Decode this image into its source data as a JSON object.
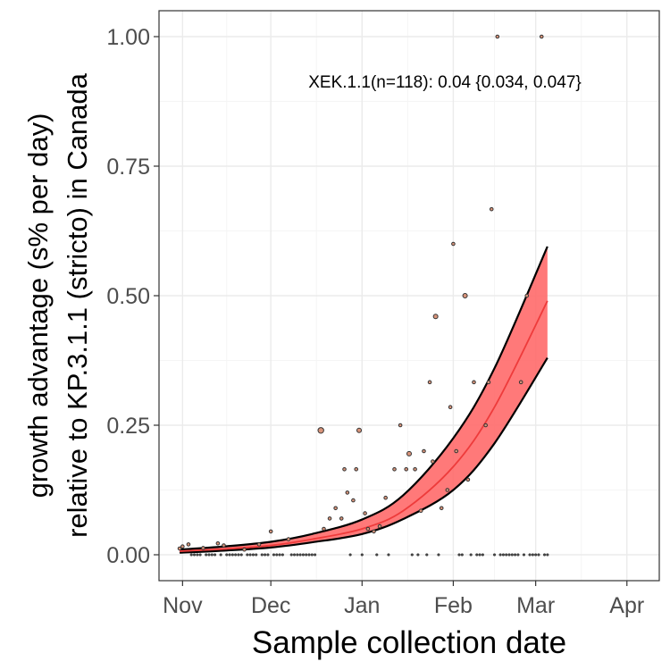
{
  "chart_data": {
    "type": "scatter",
    "title": "",
    "xlabel": "Sample collection date",
    "ylabel_line1": "growth advantage (s% per day)",
    "ylabel_line2": "relative to KP.3.1.1 (stricto) in Canada",
    "annotation": "XEK.1.1(n=118): 0.04 {0.034, 0.047}",
    "x_unit": "date",
    "xlim": [
      "2024-10-24",
      "2025-04-12"
    ],
    "ylim": [
      -0.05,
      1.05
    ],
    "x_ticks": [
      {
        "date": "2024-11-01",
        "label": "Nov"
      },
      {
        "date": "2024-12-01",
        "label": "Dec"
      },
      {
        "date": "2025-01-01",
        "label": "Jan"
      },
      {
        "date": "2025-02-01",
        "label": "Feb"
      },
      {
        "date": "2025-03-01",
        "label": "Mar"
      },
      {
        "date": "2025-04-01",
        "label": "Apr"
      }
    ],
    "y_ticks": [
      {
        "value": 0.0,
        "label": "0.00"
      },
      {
        "value": 0.25,
        "label": "0.25"
      },
      {
        "value": 0.5,
        "label": "0.50"
      },
      {
        "value": 0.75,
        "label": "0.75"
      },
      {
        "value": 1.0,
        "label": "1.00"
      }
    ],
    "grid": true,
    "colors": {
      "band_fill": "#ff6a6a",
      "fit_line": "#ee3b3b",
      "band_edge": "#000000",
      "point_fill": "#d9947a",
      "point_edge": "#333333",
      "panel_border": "#333333",
      "grid_major": "#ebebeb",
      "grid_minor": "#f5f5f5"
    },
    "fit": {
      "series_name": "XEK.1.1",
      "x": [
        "2024-10-31",
        "2024-11-15",
        "2024-12-01",
        "2024-12-15",
        "2025-01-01",
        "2025-01-15",
        "2025-02-01",
        "2025-02-15",
        "2025-03-05"
      ],
      "y": [
        0.007,
        0.011,
        0.018,
        0.03,
        0.05,
        0.085,
        0.17,
        0.285,
        0.49
      ],
      "lower": [
        0.004,
        0.008,
        0.014,
        0.024,
        0.04,
        0.069,
        0.125,
        0.215,
        0.38
      ],
      "upper": [
        0.01,
        0.016,
        0.025,
        0.04,
        0.068,
        0.115,
        0.225,
        0.36,
        0.595
      ]
    },
    "points": [
      {
        "x": "2024-10-31",
        "y": 0.012,
        "n": 1
      },
      {
        "x": "2024-11-01",
        "y": 0.016,
        "n": 1
      },
      {
        "x": "2024-11-03",
        "y": 0.02,
        "n": 1
      },
      {
        "x": "2024-11-08",
        "y": 0.013,
        "n": 1
      },
      {
        "x": "2024-11-13",
        "y": 0.022,
        "n": 1
      },
      {
        "x": "2024-11-15",
        "y": 0.018,
        "n": 1
      },
      {
        "x": "2024-11-22",
        "y": 0.01,
        "n": 1
      },
      {
        "x": "2024-11-27",
        "y": 0.02,
        "n": 1
      },
      {
        "x": "2024-12-01",
        "y": 0.045,
        "n": 1
      },
      {
        "x": "2024-12-07",
        "y": 0.03,
        "n": 1
      },
      {
        "x": "2024-12-18",
        "y": 0.24,
        "n": 3
      },
      {
        "x": "2024-12-19",
        "y": 0.05,
        "n": 1
      },
      {
        "x": "2024-12-21",
        "y": 0.07,
        "n": 1
      },
      {
        "x": "2024-12-23",
        "y": 0.09,
        "n": 1
      },
      {
        "x": "2024-12-25",
        "y": 0.07,
        "n": 1
      },
      {
        "x": "2024-12-26",
        "y": 0.165,
        "n": 1
      },
      {
        "x": "2024-12-27",
        "y": 0.12,
        "n": 1
      },
      {
        "x": "2024-12-29",
        "y": 0.105,
        "n": 1
      },
      {
        "x": "2024-12-30",
        "y": 0.165,
        "n": 1
      },
      {
        "x": "2024-12-31",
        "y": 0.24,
        "n": 2
      },
      {
        "x": "2025-01-02",
        "y": 0.08,
        "n": 1
      },
      {
        "x": "2025-01-03",
        "y": 0.05,
        "n": 1
      },
      {
        "x": "2025-01-05",
        "y": 0.045,
        "n": 1
      },
      {
        "x": "2025-01-07",
        "y": 0.055,
        "n": 1
      },
      {
        "x": "2025-01-09",
        "y": 0.11,
        "n": 1
      },
      {
        "x": "2025-01-12",
        "y": 0.165,
        "n": 1
      },
      {
        "x": "2025-01-14",
        "y": 0.25,
        "n": 1
      },
      {
        "x": "2025-01-16",
        "y": 0.165,
        "n": 1
      },
      {
        "x": "2025-01-17",
        "y": 0.195,
        "n": 2
      },
      {
        "x": "2025-01-19",
        "y": 0.165,
        "n": 1
      },
      {
        "x": "2025-01-21",
        "y": 0.085,
        "n": 1
      },
      {
        "x": "2025-01-22",
        "y": 0.2,
        "n": 1
      },
      {
        "x": "2025-01-24",
        "y": 0.333,
        "n": 1
      },
      {
        "x": "2025-01-25",
        "y": 0.18,
        "n": 1
      },
      {
        "x": "2025-01-26",
        "y": 0.46,
        "n": 2
      },
      {
        "x": "2025-01-28",
        "y": 0.09,
        "n": 1
      },
      {
        "x": "2025-01-30",
        "y": 0.125,
        "n": 1
      },
      {
        "x": "2025-01-31",
        "y": 0.285,
        "n": 1
      },
      {
        "x": "2025-02-01",
        "y": 0.6,
        "n": 1
      },
      {
        "x": "2025-02-02",
        "y": 0.2,
        "n": 1
      },
      {
        "x": "2025-02-05",
        "y": 0.5,
        "n": 2
      },
      {
        "x": "2025-02-06",
        "y": 0.145,
        "n": 1
      },
      {
        "x": "2025-02-08",
        "y": 0.333,
        "n": 1
      },
      {
        "x": "2025-02-12",
        "y": 0.25,
        "n": 1
      },
      {
        "x": "2025-02-13",
        "y": 0.333,
        "n": 1
      },
      {
        "x": "2025-02-14",
        "y": 0.667,
        "n": 1
      },
      {
        "x": "2025-02-16",
        "y": 1.0,
        "n": 1
      },
      {
        "x": "2025-02-24",
        "y": 0.333,
        "n": 1
      },
      {
        "x": "2025-02-26",
        "y": 0.5,
        "n": 1
      },
      {
        "x": "2025-03-03",
        "y": 1.0,
        "n": 1
      },
      {
        "x": "2024-11-04",
        "y": 0.0,
        "n": 1
      },
      {
        "x": "2024-11-05",
        "y": 0.0,
        "n": 1
      },
      {
        "x": "2024-11-06",
        "y": 0.0,
        "n": 1
      },
      {
        "x": "2024-11-07",
        "y": 0.0,
        "n": 1
      },
      {
        "x": "2024-11-09",
        "y": 0.0,
        "n": 1
      },
      {
        "x": "2024-11-10",
        "y": 0.0,
        "n": 1
      },
      {
        "x": "2024-11-11",
        "y": 0.0,
        "n": 1
      },
      {
        "x": "2024-11-12",
        "y": 0.0,
        "n": 1
      },
      {
        "x": "2024-11-14",
        "y": 0.0,
        "n": 1
      },
      {
        "x": "2024-11-16",
        "y": 0.0,
        "n": 1
      },
      {
        "x": "2024-11-17",
        "y": 0.0,
        "n": 1
      },
      {
        "x": "2024-11-18",
        "y": 0.0,
        "n": 1
      },
      {
        "x": "2024-11-19",
        "y": 0.0,
        "n": 1
      },
      {
        "x": "2024-11-20",
        "y": 0.0,
        "n": 1
      },
      {
        "x": "2024-11-21",
        "y": 0.0,
        "n": 1
      },
      {
        "x": "2024-11-23",
        "y": 0.0,
        "n": 1
      },
      {
        "x": "2024-11-24",
        "y": 0.0,
        "n": 1
      },
      {
        "x": "2024-11-25",
        "y": 0.0,
        "n": 1
      },
      {
        "x": "2024-11-26",
        "y": 0.0,
        "n": 1
      },
      {
        "x": "2024-11-28",
        "y": 0.0,
        "n": 1
      },
      {
        "x": "2024-11-29",
        "y": 0.0,
        "n": 1
      },
      {
        "x": "2024-11-30",
        "y": 0.0,
        "n": 1
      },
      {
        "x": "2024-12-02",
        "y": 0.0,
        "n": 1
      },
      {
        "x": "2024-12-03",
        "y": 0.0,
        "n": 1
      },
      {
        "x": "2024-12-04",
        "y": 0.0,
        "n": 1
      },
      {
        "x": "2024-12-05",
        "y": 0.0,
        "n": 1
      },
      {
        "x": "2024-12-08",
        "y": 0.0,
        "n": 1
      },
      {
        "x": "2024-12-09",
        "y": 0.0,
        "n": 1
      },
      {
        "x": "2024-12-10",
        "y": 0.0,
        "n": 1
      },
      {
        "x": "2024-12-11",
        "y": 0.0,
        "n": 1
      },
      {
        "x": "2024-12-12",
        "y": 0.0,
        "n": 1
      },
      {
        "x": "2024-12-13",
        "y": 0.0,
        "n": 1
      },
      {
        "x": "2024-12-14",
        "y": 0.0,
        "n": 1
      },
      {
        "x": "2024-12-15",
        "y": 0.0,
        "n": 1
      },
      {
        "x": "2024-12-16",
        "y": 0.0,
        "n": 1
      },
      {
        "x": "2024-12-28",
        "y": 0.0,
        "n": 1
      },
      {
        "x": "2025-01-01",
        "y": 0.0,
        "n": 1
      },
      {
        "x": "2025-01-06",
        "y": 0.0,
        "n": 1
      },
      {
        "x": "2025-01-10",
        "y": 0.0,
        "n": 1
      },
      {
        "x": "2025-01-18",
        "y": 0.0,
        "n": 1
      },
      {
        "x": "2025-01-20",
        "y": 0.0,
        "n": 1
      },
      {
        "x": "2025-01-23",
        "y": 0.0,
        "n": 1
      },
      {
        "x": "2025-01-27",
        "y": 0.0,
        "n": 1
      },
      {
        "x": "2025-02-03",
        "y": 0.0,
        "n": 1
      },
      {
        "x": "2025-02-04",
        "y": 0.0,
        "n": 1
      },
      {
        "x": "2025-02-07",
        "y": 0.0,
        "n": 1
      },
      {
        "x": "2025-02-09",
        "y": 0.0,
        "n": 1
      },
      {
        "x": "2025-02-10",
        "y": 0.0,
        "n": 1
      },
      {
        "x": "2025-02-11",
        "y": 0.0,
        "n": 1
      },
      {
        "x": "2025-02-15",
        "y": 0.0,
        "n": 1
      },
      {
        "x": "2025-02-17",
        "y": 0.0,
        "n": 1
      },
      {
        "x": "2025-02-18",
        "y": 0.0,
        "n": 1
      },
      {
        "x": "2025-02-19",
        "y": 0.0,
        "n": 1
      },
      {
        "x": "2025-02-20",
        "y": 0.0,
        "n": 1
      },
      {
        "x": "2025-02-21",
        "y": 0.0,
        "n": 1
      },
      {
        "x": "2025-02-22",
        "y": 0.0,
        "n": 1
      },
      {
        "x": "2025-02-23",
        "y": 0.0,
        "n": 1
      },
      {
        "x": "2025-02-25",
        "y": 0.0,
        "n": 1
      },
      {
        "x": "2025-02-27",
        "y": 0.0,
        "n": 1
      },
      {
        "x": "2025-02-28",
        "y": 0.0,
        "n": 1
      },
      {
        "x": "2025-03-01",
        "y": 0.0,
        "n": 1
      },
      {
        "x": "2025-03-02",
        "y": 0.0,
        "n": 1
      },
      {
        "x": "2025-03-04",
        "y": 0.0,
        "n": 1
      },
      {
        "x": "2025-03-05",
        "y": 0.0,
        "n": 1
      }
    ]
  }
}
